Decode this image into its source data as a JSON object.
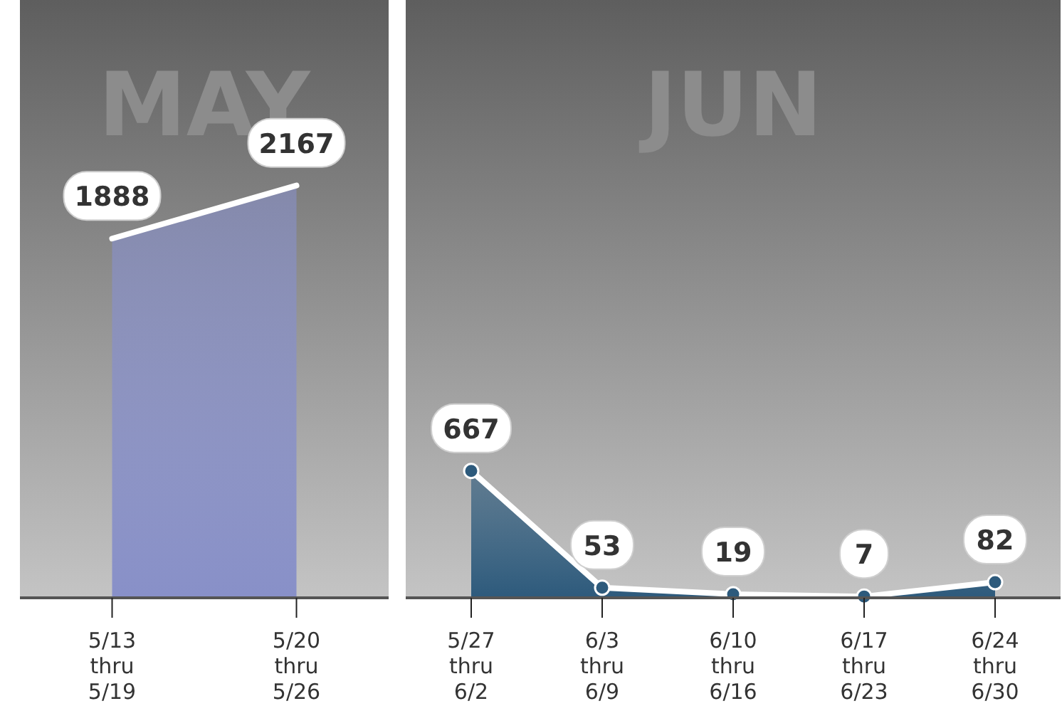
{
  "chart_data": [
    {
      "type": "area",
      "title": "MAY",
      "categories": [
        "5/13 thru 5/19",
        "5/20 thru 5/26"
      ],
      "series": [
        {
          "color": "#8890c8",
          "values": [
            1888,
            2167
          ]
        }
      ],
      "data_labels": true,
      "marker": "none"
    },
    {
      "type": "area",
      "title": "JUN",
      "categories": [
        "5/27 thru 6/2",
        "6/3 thru 6/9",
        "6/10 thru 6/16",
        "6/17 thru 6/23",
        "6/24 thru 6/30"
      ],
      "series": [
        {
          "color": "#2d5a7c",
          "values": [
            667,
            53,
            19,
            7,
            82
          ]
        }
      ],
      "data_labels": true,
      "marker": "circle"
    }
  ]
}
